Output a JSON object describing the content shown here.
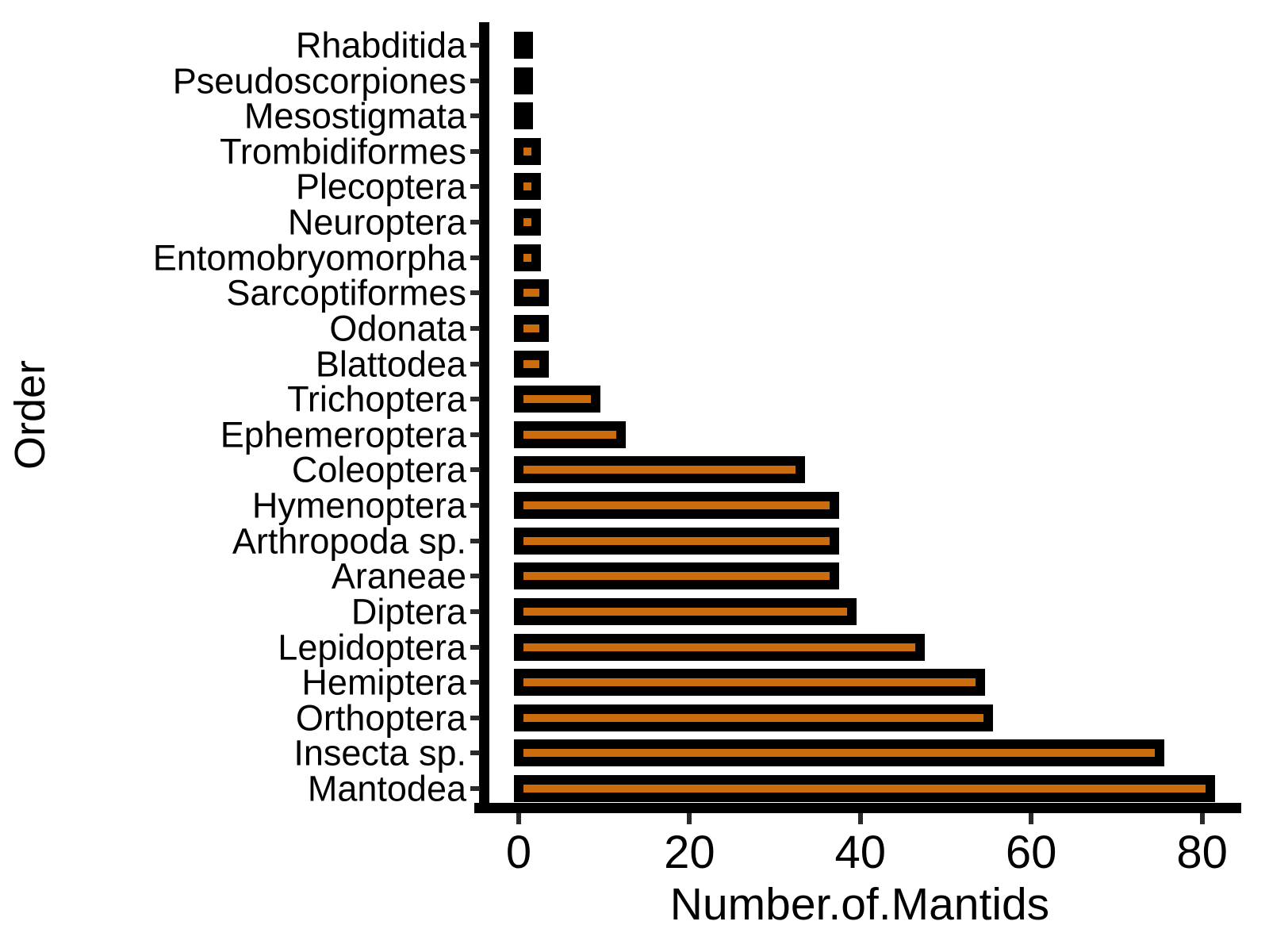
{
  "chart_data": {
    "type": "bar",
    "orientation": "horizontal",
    "title": "",
    "xlabel": "Number.of.Mantids",
    "ylabel": "Order",
    "categories": [
      "Rhabditida",
      "Pseudoscorpiones",
      "Mesostigmata",
      "Trombidiformes",
      "Plecoptera",
      "Neuroptera",
      "Entomobryomorpha",
      "Sarcoptiformes",
      "Odonata",
      "Blattodea",
      "Trichoptera",
      "Ephemeroptera",
      "Coleoptera",
      "Hymenoptera",
      "Arthropoda sp.",
      "Araneae",
      "Diptera",
      "Lepidoptera",
      "Hemiptera",
      "Orthoptera",
      "Insecta sp.",
      "Mantodea"
    ],
    "values": [
      1,
      1,
      1,
      2,
      2,
      2,
      2,
      3,
      3,
      3,
      9,
      12,
      33,
      37,
      37,
      37,
      39,
      47,
      54,
      55,
      75,
      81
    ],
    "x_ticks": [
      0,
      20,
      40,
      60,
      80
    ],
    "xlim": [
      0,
      85
    ],
    "bar_fill": "#CB6D0F",
    "bar_stroke": "#000000",
    "axis_color": "#000000",
    "grid": "off",
    "legend": "none"
  }
}
